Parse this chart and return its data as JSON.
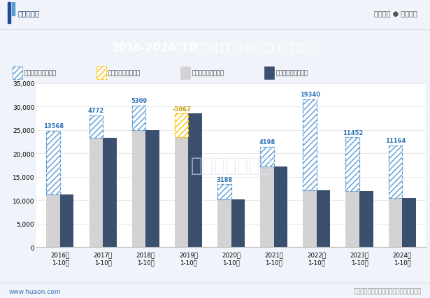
{
  "years": [
    "2016年\n1-10月",
    "2017年\n1-10月",
    "2018年\n1-10月",
    "2019年\n1-10月",
    "2020年\n1-10月",
    "2021年\n1-10月",
    "2022年\n1-10月",
    "2023年\n1-10月",
    "2024年\n1-10月"
  ],
  "export_total": [
    24800,
    28100,
    30200,
    23400,
    13400,
    21400,
    31500,
    23400,
    21700
  ],
  "import_total": [
    11232,
    23328,
    24891,
    28467,
    10212,
    17202,
    12160,
    11948,
    10536
  ],
  "surplus_values": [
    13568,
    4772,
    5309,
    0,
    3188,
    4198,
    19340,
    11452,
    11164
  ],
  "deficit_values": [
    0,
    0,
    0,
    -5067,
    0,
    0,
    0,
    0,
    0
  ],
  "surplus_labels": [
    "13568",
    "4772",
    "5309",
    "",
    "3188",
    "4198",
    "19340",
    "11452",
    "11164"
  ],
  "deficit_labels": [
    "",
    "",
    "",
    "-5067",
    "",
    "",
    "",
    "",
    ""
  ],
  "bar_width": 0.32,
  "export_color": "#d3d3d3",
  "import_color": "#3b4f6e",
  "surplus_hatch_color": "#5b9bd5",
  "deficit_hatch_color": "#ffc000",
  "surplus_label_color": "#2e75b6",
  "deficit_label_color": "#c49a00",
  "title": "2016-2024年10月宁夏回族自治区外商投资企业进出口差额",
  "title_bg_color": "#1f4e96",
  "ylim": [
    0,
    35000
  ],
  "yticks": [
    0,
    5000,
    10000,
    15000,
    20000,
    25000,
    30000,
    35000
  ],
  "legend_labels": [
    "贸易顺差（万美元）",
    "贸易逆差（万美元）",
    "出口总额（万美元）",
    "进口总额（万美元）"
  ],
  "footer_left": "www.huaon.com",
  "footer_right": "数据来源：中国海关；华经产业研究院整理",
  "header_left": "华经情报网",
  "header_right": "专业严谨 ● 客观科学",
  "bg_color": "#f0f4fa"
}
